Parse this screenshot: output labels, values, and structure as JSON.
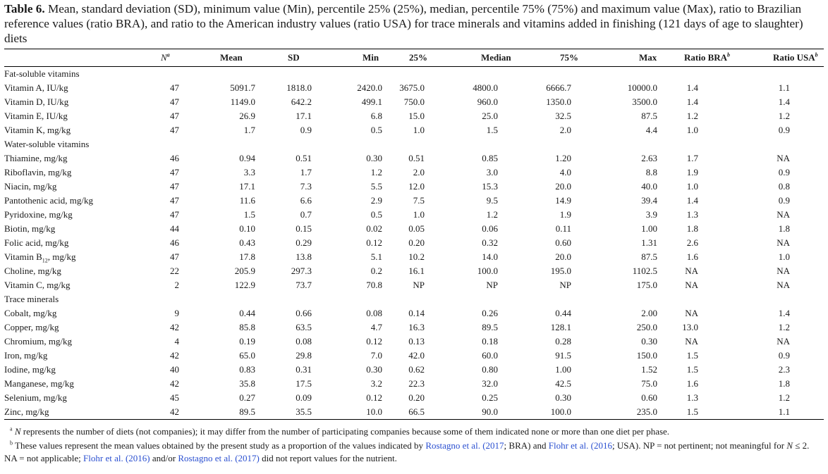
{
  "caption": {
    "label": "Table 6.",
    "text": "Mean, standard deviation (SD), minimum value (Min), percentile 25% (25%), median, percentile 75% (75%) and maximum value (Max), ratio to Brazilian reference values (ratio BRA), and ratio to the American industry values (ratio USA) for trace minerals and vitamins added in finishing (121 days of age to slaughter) diets"
  },
  "table": {
    "headers": {
      "name": "",
      "n": "N",
      "n_sup": "a",
      "mean": "Mean",
      "sd": "SD",
      "min": "Min",
      "p25": "25%",
      "median": "Median",
      "p75": "75%",
      "max": "Max",
      "ratio_bra": "Ratio BRA",
      "ratio_bra_sup": "b",
      "ratio_usa": "Ratio USA",
      "ratio_usa_sup": "b"
    },
    "groups": [
      {
        "title": "Fat-soluble vitamins",
        "rows": [
          {
            "name": "Vitamin A, IU/kg",
            "n": "47",
            "mean": "5091.7",
            "sd": "1818.0",
            "min": "2420.0",
            "p25": "3675.0",
            "median": "4800.0",
            "p75": "6666.7",
            "max": "10000.0",
            "bra": "1.4",
            "usa": "1.1"
          },
          {
            "name": "Vitamin D, IU/kg",
            "n": "47",
            "mean": "1149.0",
            "sd": "642.2",
            "min": "499.1",
            "p25": "750.0",
            "median": "960.0",
            "p75": "1350.0",
            "max": "3500.0",
            "bra": "1.4",
            "usa": "1.4"
          },
          {
            "name": "Vitamin E, IU/kg",
            "n": "47",
            "mean": "26.9",
            "sd": "17.1",
            "min": "6.8",
            "p25": "15.0",
            "median": "25.0",
            "p75": "32.5",
            "max": "87.5",
            "bra": "1.2",
            "usa": "1.2"
          },
          {
            "name": "Vitamin K, mg/kg",
            "n": "47",
            "mean": "1.7",
            "sd": "0.9",
            "min": "0.5",
            "p25": "1.0",
            "median": "1.5",
            "p75": "2.0",
            "max": "4.4",
            "bra": "1.0",
            "usa": "0.9"
          }
        ]
      },
      {
        "title": "Water-soluble vitamins",
        "rows": [
          {
            "name": "Thiamine, mg/kg",
            "n": "46",
            "mean": "0.94",
            "sd": "0.51",
            "min": "0.30",
            "p25": "0.51",
            "median": "0.85",
            "p75": "1.20",
            "max": "2.63",
            "bra": "1.7",
            "usa": "NA"
          },
          {
            "name": "Riboflavin, mg/kg",
            "n": "47",
            "mean": "3.3",
            "sd": "1.7",
            "min": "1.2",
            "p25": "2.0",
            "median": "3.0",
            "p75": "4.0",
            "max": "8.8",
            "bra": "1.9",
            "usa": "0.9"
          },
          {
            "name": "Niacin, mg/kg",
            "n": "47",
            "mean": "17.1",
            "sd": "7.3",
            "min": "5.5",
            "p25": "12.0",
            "median": "15.3",
            "p75": "20.0",
            "max": "40.0",
            "bra": "1.0",
            "usa": "0.8"
          },
          {
            "name": "Pantothenic acid, mg/kg",
            "n": "47",
            "mean": "11.6",
            "sd": "6.6",
            "min": "2.9",
            "p25": "7.5",
            "median": "9.5",
            "p75": "14.9",
            "max": "39.4",
            "bra": "1.4",
            "usa": "0.9"
          },
          {
            "name": "Pyridoxine, mg/kg",
            "n": "47",
            "mean": "1.5",
            "sd": "0.7",
            "min": "0.5",
            "p25": "1.0",
            "median": "1.2",
            "p75": "1.9",
            "max": "3.9",
            "bra": "1.3",
            "usa": "NA"
          },
          {
            "name": "Biotin, mg/kg",
            "n": "44",
            "mean": "0.10",
            "sd": "0.15",
            "min": "0.02",
            "p25": "0.05",
            "median": "0.06",
            "p75": "0.11",
            "max": "1.00",
            "bra": "1.8",
            "usa": "1.8"
          },
          {
            "name": "Folic acid, mg/kg",
            "n": "46",
            "mean": "0.43",
            "sd": "0.29",
            "min": "0.12",
            "p25": "0.20",
            "median": "0.32",
            "p75": "0.60",
            "max": "1.31",
            "bra": "2.6",
            "usa": "NA"
          },
          {
            "name": "Vitamin B",
            "name_sub": "12",
            "name_suffix": ", mg/kg",
            "n": "47",
            "mean": "17.8",
            "sd": "13.8",
            "min": "5.1",
            "p25": "10.2",
            "median": "14.0",
            "p75": "20.0",
            "max": "87.5",
            "bra": "1.6",
            "usa": "1.0"
          },
          {
            "name": "Choline, mg/kg",
            "n": "22",
            "mean": "205.9",
            "sd": "297.3",
            "min": "0.2",
            "p25": "16.1",
            "median": "100.0",
            "p75": "195.0",
            "max": "1102.5",
            "bra": "NA",
            "usa": "NA"
          },
          {
            "name": "Vitamin C, mg/kg",
            "n": "2",
            "mean": "122.9",
            "sd": "73.7",
            "min": "70.8",
            "p25": "NP",
            "median": "NP",
            "p75": "NP",
            "max": "175.0",
            "bra": "NA",
            "usa": "NA"
          }
        ]
      },
      {
        "title": "Trace minerals",
        "rows": [
          {
            "name": "Cobalt, mg/kg",
            "n": "9",
            "mean": "0.44",
            "sd": "0.66",
            "min": "0.08",
            "p25": "0.14",
            "median": "0.26",
            "p75": "0.44",
            "max": "2.00",
            "bra": "NA",
            "usa": "1.4"
          },
          {
            "name": "Copper, mg/kg",
            "n": "42",
            "mean": "85.8",
            "sd": "63.5",
            "min": "4.7",
            "p25": "16.3",
            "median": "89.5",
            "p75": "128.1",
            "max": "250.0",
            "bra": "13.0",
            "usa": "1.2"
          },
          {
            "name": "Chromium, mg/kg",
            "n": "4",
            "mean": "0.19",
            "sd": "0.08",
            "min": "0.12",
            "p25": "0.13",
            "median": "0.18",
            "p75": "0.28",
            "max": "0.30",
            "bra": "NA",
            "usa": "NA"
          },
          {
            "name": "Iron, mg/kg",
            "n": "42",
            "mean": "65.0",
            "sd": "29.8",
            "min": "7.0",
            "p25": "42.0",
            "median": "60.0",
            "p75": "91.5",
            "max": "150.0",
            "bra": "1.5",
            "usa": "0.9"
          },
          {
            "name": "Iodine, mg/kg",
            "n": "40",
            "mean": "0.83",
            "sd": "0.31",
            "min": "0.30",
            "p25": "0.62",
            "median": "0.80",
            "p75": "1.00",
            "max": "1.52",
            "bra": "1.5",
            "usa": "2.3"
          },
          {
            "name": "Manganese, mg/kg",
            "n": "42",
            "mean": "35.8",
            "sd": "17.5",
            "min": "3.2",
            "p25": "22.3",
            "median": "32.0",
            "p75": "42.5",
            "max": "75.0",
            "bra": "1.6",
            "usa": "1.8"
          },
          {
            "name": "Selenium, mg/kg",
            "n": "45",
            "mean": "0.27",
            "sd": "0.09",
            "min": "0.12",
            "p25": "0.20",
            "median": "0.25",
            "p75": "0.30",
            "max": "0.60",
            "bra": "1.3",
            "usa": "1.2"
          },
          {
            "name": "Zinc, mg/kg",
            "n": "42",
            "mean": "89.5",
            "sd": "35.5",
            "min": "10.0",
            "p25": "66.5",
            "median": "90.0",
            "p75": "100.0",
            "max": "235.0",
            "bra": "1.5",
            "usa": "1.1"
          }
        ]
      }
    ]
  },
  "footnotes": {
    "a": {
      "symbol": "a",
      "n_symbol": "N",
      "text": " represents the number of diets (not companies); it may differ from the number of participating companies because some of them indicated none or more than one diet per phase."
    },
    "b": {
      "symbol": "b",
      "t1": "These values represent the mean values obtained by the present study as a proportion of the values indicated by ",
      "ref1": "Rostagno et al. (2017",
      "t2": "; BRA) and ",
      "ref2": "Flohr et al. (2016",
      "t3": "; USA). NP = not pertinent; not meaningful for ",
      "n_symbol": "N",
      "t4": " ≤ 2. NA = not applicable; ",
      "ref3": "Flohr et al. (2016)",
      "t5": " and/or ",
      "ref4": "Rostagno et al. (2017)",
      "t6": " did not report values for the nutrient."
    }
  },
  "colors": {
    "link": "#2a4fd0",
    "text": "#1a1a1a"
  }
}
